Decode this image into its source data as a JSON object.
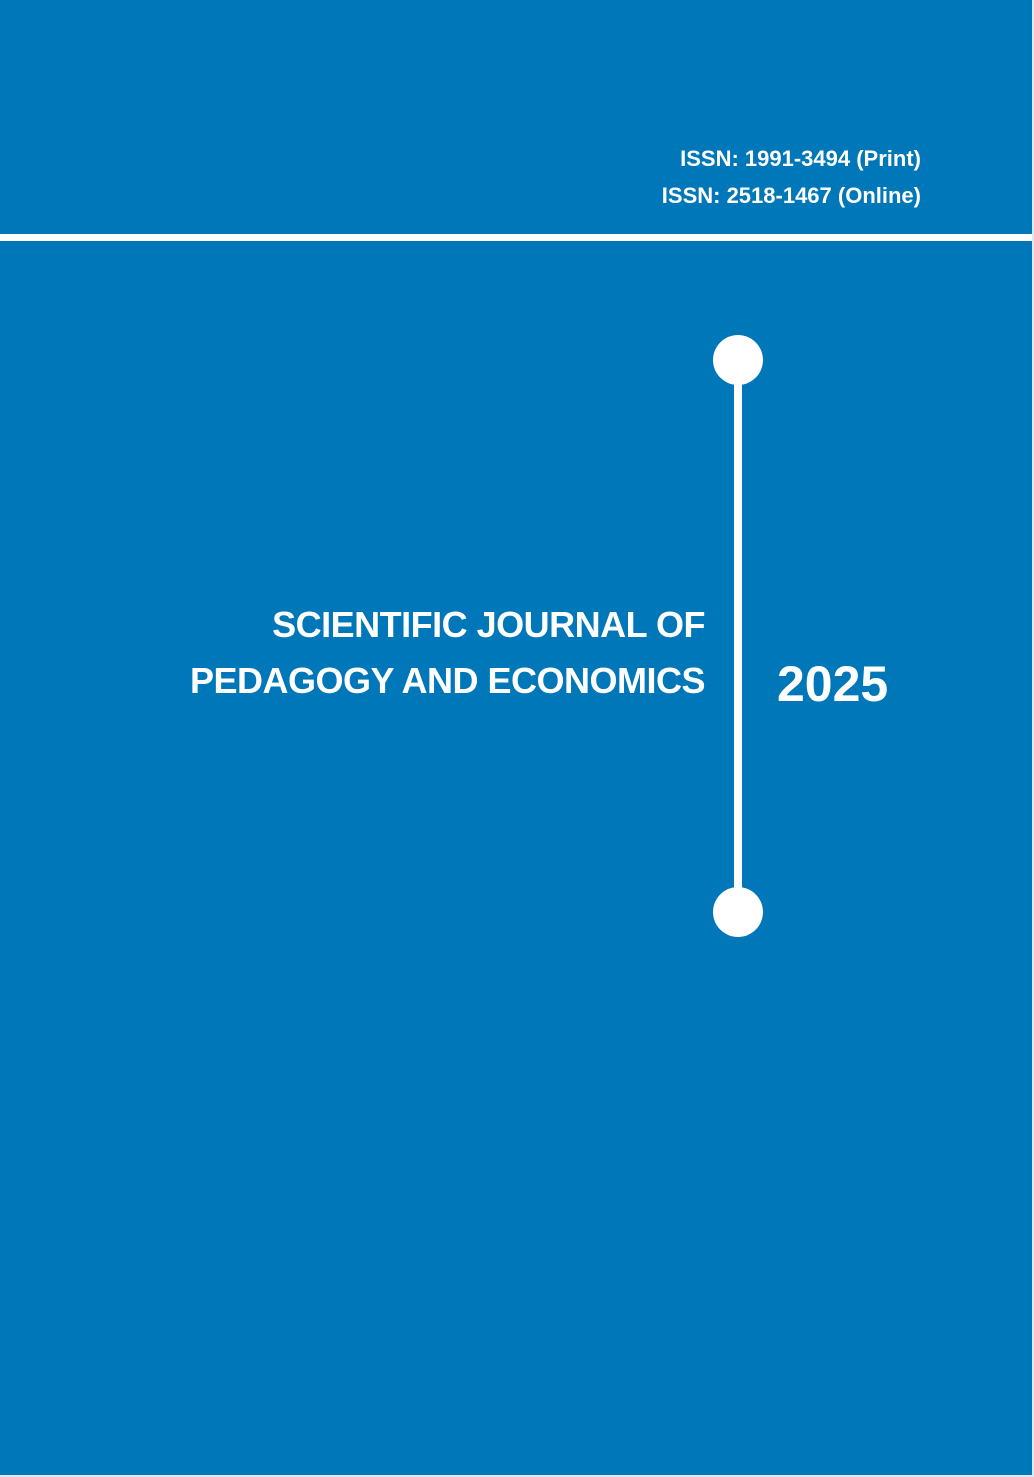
{
  "header": {
    "issn_print": "ISSN: 1991-3494 (Print)",
    "issn_online": "ISSN: 2518-1467 (Online)"
  },
  "journal": {
    "title_line1": "SCIENTIFIC JOURNAL OF",
    "title_line2": "PEDAGOGY AND ECONOMICS",
    "year": "2025"
  },
  "colors": {
    "background": "#0077b8",
    "foreground": "#ffffff"
  }
}
